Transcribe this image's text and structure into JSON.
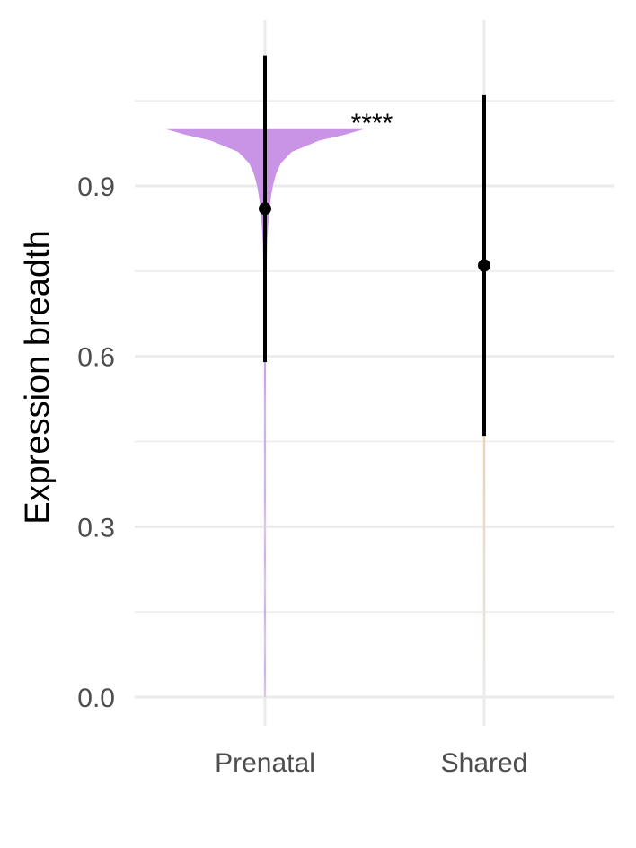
{
  "chart_data": {
    "type": "violin",
    "title": "",
    "xlabel": "",
    "ylabel": "Expression breadth",
    "ylim": [
      -0.05,
      1.15
    ],
    "yticks": [
      0.0,
      0.3,
      0.6,
      0.9
    ],
    "yticks_labels": [
      "0.0",
      "0.3",
      "0.6",
      "0.9"
    ],
    "categories": [
      "Prenatal",
      "Shared"
    ],
    "grid": true,
    "legend": "none",
    "annotations": [
      {
        "text": "****",
        "x": 0.5,
        "y": 1.03
      }
    ],
    "series": [
      {
        "category": "Prenatal",
        "color": "#c994e6",
        "mean": 0.86,
        "sd_lower": 0.59,
        "sd_upper": 1.13,
        "density": [
          [
            0.0,
            0.004
          ],
          [
            0.05,
            0.006
          ],
          [
            0.1,
            0.004
          ],
          [
            0.15,
            0.006
          ],
          [
            0.2,
            0.004
          ],
          [
            0.25,
            0.006
          ],
          [
            0.3,
            0.004
          ],
          [
            0.35,
            0.006
          ],
          [
            0.4,
            0.005
          ],
          [
            0.45,
            0.006
          ],
          [
            0.5,
            0.005
          ],
          [
            0.55,
            0.007
          ],
          [
            0.6,
            0.008
          ],
          [
            0.65,
            0.01
          ],
          [
            0.7,
            0.012
          ],
          [
            0.75,
            0.016
          ],
          [
            0.8,
            0.022
          ],
          [
            0.85,
            0.04
          ],
          [
            0.88,
            0.06
          ],
          [
            0.9,
            0.08
          ],
          [
            0.92,
            0.11
          ],
          [
            0.94,
            0.16
          ],
          [
            0.96,
            0.27
          ],
          [
            0.98,
            0.55
          ],
          [
            0.99,
            0.8
          ],
          [
            1.0,
            1.0
          ]
        ]
      },
      {
        "category": "Shared",
        "color": "#e8c48e",
        "mean": 0.76,
        "sd_lower": 0.46,
        "sd_upper": 1.06,
        "density": [
          [
            0.0,
            0.002
          ],
          [
            0.1,
            0.012
          ],
          [
            0.2,
            0.02
          ],
          [
            0.3,
            0.03
          ],
          [
            0.4,
            0.04
          ],
          [
            0.45,
            0.045
          ],
          [
            0.5,
            0.04
          ],
          [
            0.55,
            0.045
          ],
          [
            0.6,
            0.06
          ],
          [
            0.65,
            0.07
          ],
          [
            0.7,
            0.08
          ],
          [
            0.75,
            0.09
          ],
          [
            0.8,
            0.1
          ],
          [
            0.85,
            0.11
          ],
          [
            0.88,
            0.12
          ],
          [
            0.9,
            0.1
          ],
          [
            0.93,
            0.13
          ],
          [
            0.96,
            0.12
          ],
          [
            0.98,
            0.13
          ],
          [
            1.0,
            0.13
          ]
        ]
      }
    ]
  }
}
